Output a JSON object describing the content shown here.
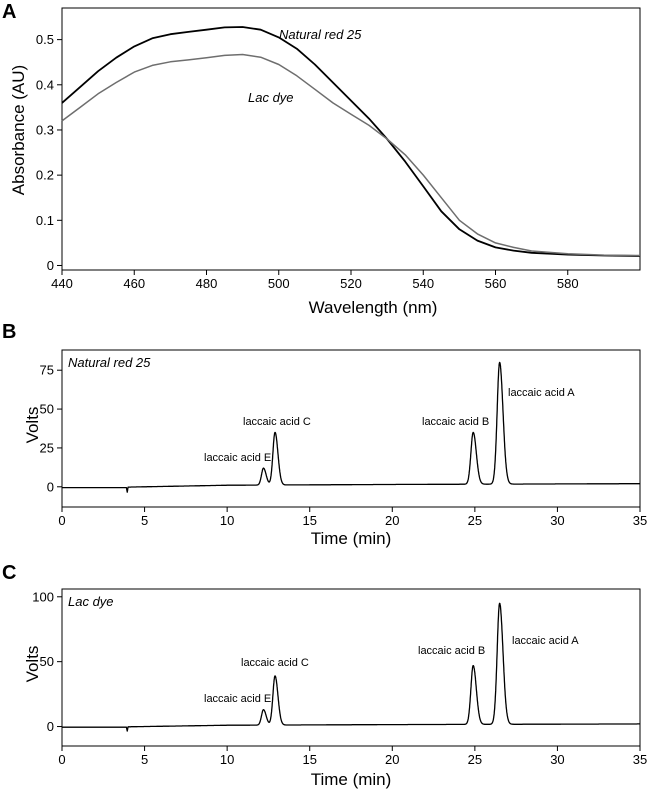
{
  "chart_data": [
    {
      "panel": "A",
      "type": "line",
      "xlabel": "Wavelength (nm)",
      "ylabel": "Absorbance (AU)",
      "xlim": [
        440,
        600
      ],
      "ylim": [
        -0.01,
        0.57
      ],
      "xticks": [
        440,
        460,
        480,
        500,
        520,
        540,
        560,
        580
      ],
      "yticks": [
        0,
        0.1,
        0.2,
        0.3,
        0.4,
        0.5
      ],
      "xtick_labels": [
        "440",
        "460",
        "480",
        "500",
        "520",
        "540",
        "560",
        "580"
      ],
      "ytick_labels": [
        "0",
        "0.1",
        "0.2",
        "0.3",
        "0.4",
        "0.5"
      ],
      "series": [
        {
          "name": "Natural red 25",
          "color": "#000000",
          "x": [
            440,
            445,
            450,
            455,
            460,
            465,
            470,
            475,
            480,
            485,
            490,
            495,
            500,
            505,
            510,
            515,
            520,
            525,
            530,
            535,
            540,
            545,
            550,
            555,
            560,
            565,
            570,
            580,
            590,
            600
          ],
          "y": [
            0.36,
            0.395,
            0.43,
            0.46,
            0.485,
            0.503,
            0.512,
            0.517,
            0.522,
            0.527,
            0.528,
            0.522,
            0.505,
            0.48,
            0.445,
            0.405,
            0.365,
            0.325,
            0.28,
            0.23,
            0.175,
            0.12,
            0.08,
            0.055,
            0.04,
            0.033,
            0.028,
            0.024,
            0.022,
            0.021
          ]
        },
        {
          "name": "Lac dye",
          "color": "#6e6e6e",
          "x": [
            440,
            445,
            450,
            455,
            460,
            465,
            470,
            475,
            480,
            485,
            490,
            495,
            500,
            505,
            510,
            515,
            520,
            525,
            530,
            535,
            540,
            545,
            550,
            555,
            560,
            565,
            570,
            580,
            590,
            600
          ],
          "y": [
            0.32,
            0.35,
            0.38,
            0.405,
            0.428,
            0.443,
            0.451,
            0.455,
            0.46,
            0.465,
            0.467,
            0.461,
            0.445,
            0.42,
            0.39,
            0.36,
            0.335,
            0.31,
            0.28,
            0.245,
            0.2,
            0.15,
            0.1,
            0.07,
            0.05,
            0.04,
            0.032,
            0.026,
            0.023,
            0.022
          ]
        }
      ],
      "annotations": [
        "Natural red 25",
        "Lac dye"
      ]
    },
    {
      "panel": "B",
      "type": "line",
      "title": "Natural red 25",
      "xlabel": "Time (min)",
      "ylabel": "Volts",
      "xlim": [
        0,
        35
      ],
      "ylim": [
        -13,
        88
      ],
      "xticks": [
        0,
        5,
        10,
        15,
        20,
        25,
        30,
        35
      ],
      "yticks": [
        0,
        25,
        50,
        75
      ],
      "xtick_labels": [
        "0",
        "5",
        "10",
        "15",
        "20",
        "25",
        "30",
        "35"
      ],
      "ytick_labels": [
        "0",
        "25",
        "50",
        "75"
      ],
      "baseline": [
        [
          0,
          -0.5
        ],
        [
          3.9,
          -0.5
        ],
        [
          3.95,
          -3.5
        ],
        [
          4.0,
          -0.2
        ],
        [
          10,
          1.0
        ],
        [
          20,
          1.5
        ],
        [
          35,
          2.0
        ]
      ],
      "peaks": [
        {
          "label": "laccaic acid E",
          "time": 12.2,
          "height": 12,
          "width": 0.12
        },
        {
          "label": "laccaic acid C",
          "time": 12.9,
          "height": 35,
          "width": 0.13
        },
        {
          "label": "laccaic acid B",
          "time": 24.9,
          "height": 35,
          "width": 0.14
        },
        {
          "label": "laccaic acid A",
          "time": 26.5,
          "height": 80,
          "width": 0.15
        }
      ]
    },
    {
      "panel": "C",
      "type": "line",
      "title": "Lac dye",
      "xlabel": "Time (min)",
      "ylabel": "Volts",
      "xlim": [
        0,
        35
      ],
      "ylim": [
        -15,
        106
      ],
      "xticks": [
        0,
        5,
        10,
        15,
        20,
        25,
        30,
        35
      ],
      "yticks": [
        0,
        50,
        100
      ],
      "xtick_labels": [
        "0",
        "5",
        "10",
        "15",
        "20",
        "25",
        "30",
        "35"
      ],
      "ytick_labels": [
        "0",
        "50",
        "100"
      ],
      "baseline": [
        [
          0,
          -0.5
        ],
        [
          3.9,
          -0.5
        ],
        [
          3.95,
          -3.5
        ],
        [
          4.0,
          -0.2
        ],
        [
          10,
          1.0
        ],
        [
          20,
          1.5
        ],
        [
          35,
          2.0
        ]
      ],
      "peaks": [
        {
          "label": "laccaic acid E",
          "time": 12.2,
          "height": 13,
          "width": 0.12
        },
        {
          "label": "laccaic acid C",
          "time": 12.9,
          "height": 39,
          "width": 0.13
        },
        {
          "label": "laccaic acid B",
          "time": 24.9,
          "height": 47,
          "width": 0.14
        },
        {
          "label": "laccaic acid A",
          "time": 26.5,
          "height": 95,
          "width": 0.15
        }
      ]
    }
  ]
}
